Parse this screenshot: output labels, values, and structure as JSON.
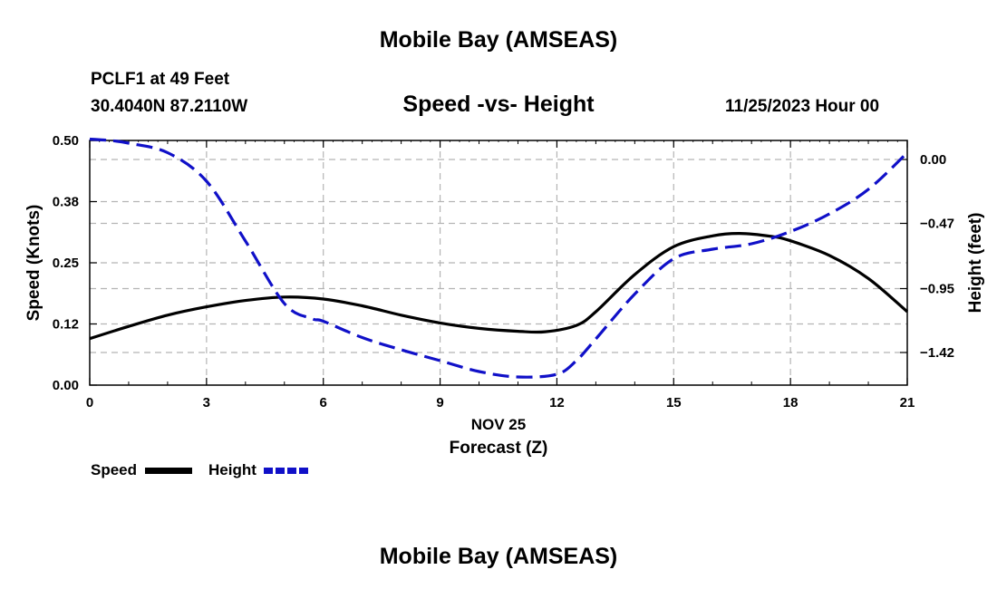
{
  "header": {
    "title": "Mobile Bay (AMSEAS)",
    "station": "PCLF1 at 49 Feet",
    "coords": "30.4040N  87.2110W",
    "subtitle": "Speed -vs- Height",
    "datetime": "11/25/2023 Hour 00"
  },
  "footer": {
    "title": "Mobile Bay (AMSEAS)"
  },
  "legend": {
    "speed_label": "Speed",
    "height_label": "Height"
  },
  "colors": {
    "speed": "#000000",
    "height": "#1010c8",
    "grid": "#b4b4b4"
  },
  "chart_data": {
    "type": "line",
    "title": "Speed -vs- Height",
    "xlabel": "Forecast (Z)",
    "xsublabel": "NOV 25",
    "ylabel": "Speed (Knots)",
    "y2label": "Height (feet)",
    "xlim": [
      0,
      21
    ],
    "ylim": [
      0,
      0.5
    ],
    "y2lim": [
      -1.66,
      0.14
    ],
    "x_ticks": [
      0,
      3,
      6,
      9,
      12,
      15,
      18,
      21
    ],
    "x_tick_labels": [
      "0",
      "3",
      "6",
      "9",
      "12",
      "15",
      "18",
      "21"
    ],
    "y_ticks": [
      0.0,
      0.125,
      0.25,
      0.375,
      0.5
    ],
    "y_tick_labels": [
      "0.00",
      "0.12",
      "0.25",
      "0.38",
      "0.50"
    ],
    "y2_ticks": [
      0.0,
      -0.47,
      -0.95,
      -1.42
    ],
    "y2_tick_labels": [
      "0.00",
      "−0.47",
      "−0.95",
      "−1.42"
    ],
    "grid": true,
    "series": [
      {
        "name": "Speed",
        "axis": "left",
        "style": "solid",
        "x": [
          0,
          1,
          2,
          3,
          4,
          5,
          6,
          7,
          8,
          9,
          10,
          11,
          11.7,
          12.5,
          13,
          14,
          15,
          16,
          16.7,
          17.5,
          18,
          19,
          20,
          21
        ],
        "values": [
          0.095,
          0.12,
          0.143,
          0.16,
          0.173,
          0.18,
          0.176,
          0.162,
          0.143,
          0.127,
          0.116,
          0.11,
          0.109,
          0.122,
          0.15,
          0.226,
          0.283,
          0.305,
          0.31,
          0.304,
          0.295,
          0.265,
          0.218,
          0.15
        ]
      },
      {
        "name": "Height",
        "axis": "right",
        "style": "dashed",
        "x": [
          0,
          0.5,
          1,
          2,
          3,
          4,
          5,
          5.7,
          6,
          7,
          8,
          9,
          10,
          11,
          12,
          12.5,
          13,
          14,
          15,
          16,
          17,
          18,
          19,
          20,
          21
        ],
        "values": [
          0.15,
          0.14,
          0.12,
          0.05,
          -0.16,
          -0.6,
          -1.06,
          -1.17,
          -1.19,
          -1.31,
          -1.4,
          -1.48,
          -1.56,
          -1.6,
          -1.58,
          -1.48,
          -1.32,
          -0.99,
          -0.73,
          -0.66,
          -0.62,
          -0.53,
          -0.4,
          -0.22,
          0.05
        ]
      }
    ]
  }
}
